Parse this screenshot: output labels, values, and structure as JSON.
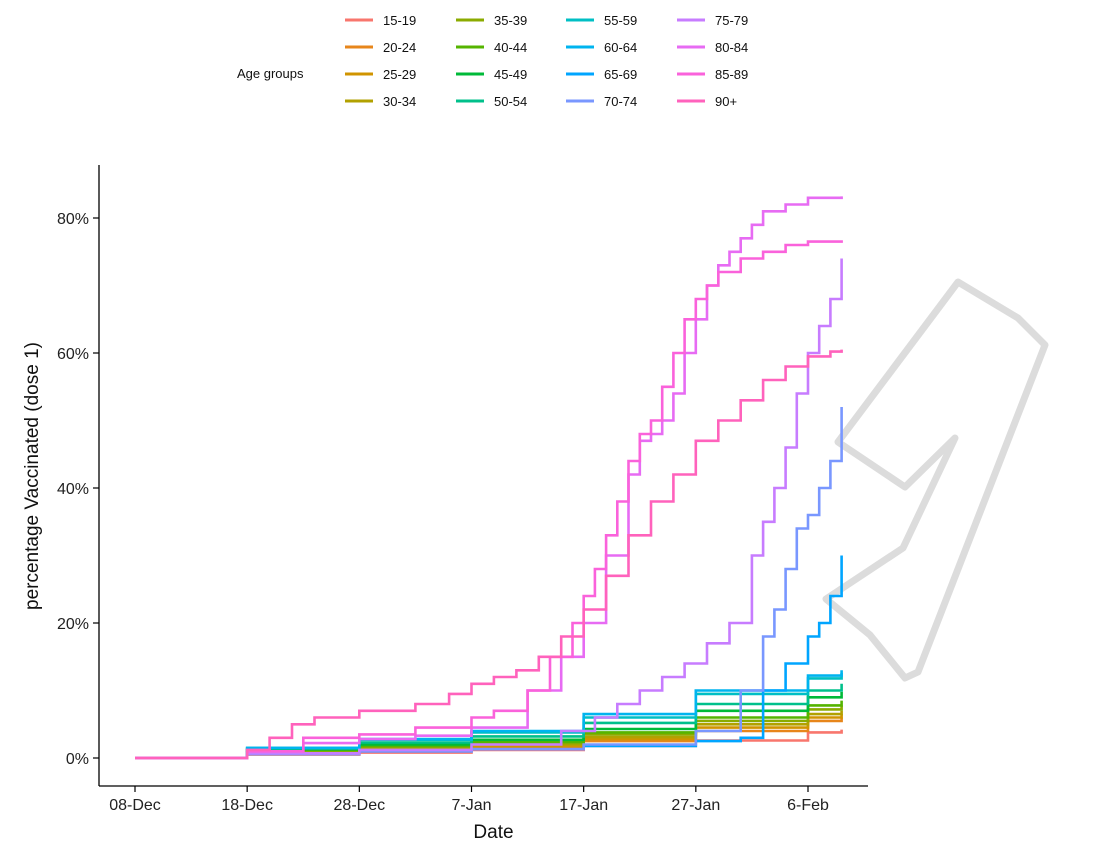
{
  "chart_data": {
    "type": "line",
    "step": true,
    "title": "",
    "xlabel": "Date",
    "ylabel": "percentage Vaccinated (dose 1)",
    "x_ticks": [
      "08-Dec",
      "18-Dec",
      "28-Dec",
      "7-Jan",
      "17-Jan",
      "27-Jan",
      "6-Feb"
    ],
    "x_tick_days": [
      0,
      10,
      20,
      30,
      40,
      50,
      60
    ],
    "x_range_days": [
      0,
      63
    ],
    "y_ticks": [
      "0%",
      "20%",
      "40%",
      "60%",
      "80%"
    ],
    "y_tick_values": [
      0,
      20,
      40,
      60,
      80
    ],
    "ylim": [
      -4,
      88
    ],
    "grid": false,
    "legend": {
      "title": "Age groups",
      "position": "top"
    },
    "series": [
      {
        "name": "15-19",
        "color": "#F8766D",
        "x": [
          0,
          10,
          20,
          30,
          40,
          50,
          60,
          63
        ],
        "y": [
          0,
          0.5,
          0.8,
          1.2,
          1.8,
          2.6,
          3.8,
          4.2
        ]
      },
      {
        "name": "20-24",
        "color": "#E7861B",
        "x": [
          0,
          10,
          20,
          30,
          40,
          50,
          60,
          63
        ],
        "y": [
          0,
          0.8,
          1.2,
          1.6,
          2.5,
          4,
          5.5,
          6
        ]
      },
      {
        "name": "25-29",
        "color": "#D09400",
        "x": [
          0,
          10,
          20,
          30,
          40,
          50,
          60,
          63
        ],
        "y": [
          0,
          0.9,
          1.4,
          1.8,
          2.8,
          4.5,
          6,
          6.5
        ]
      },
      {
        "name": "30-34",
        "color": "#B2A100",
        "x": [
          0,
          10,
          20,
          30,
          40,
          50,
          60,
          63
        ],
        "y": [
          0,
          1,
          1.5,
          2,
          3.1,
          5,
          6.5,
          7
        ]
      },
      {
        "name": "35-39",
        "color": "#8BAB00",
        "x": [
          0,
          10,
          20,
          30,
          40,
          50,
          60,
          63
        ],
        "y": [
          0,
          1.1,
          1.7,
          2.2,
          3.5,
          5.5,
          7.2,
          7.8
        ]
      },
      {
        "name": "40-44",
        "color": "#55B400",
        "x": [
          0,
          10,
          20,
          30,
          40,
          50,
          60,
          63
        ],
        "y": [
          0,
          1.2,
          1.8,
          2.4,
          3.8,
          6,
          7.8,
          8.5
        ]
      },
      {
        "name": "45-49",
        "color": "#00BA38",
        "x": [
          0,
          10,
          20,
          30,
          40,
          50,
          60,
          63
        ],
        "y": [
          0,
          1.3,
          2,
          2.7,
          4.3,
          7,
          9,
          9.8
        ]
      },
      {
        "name": "50-54",
        "color": "#00C08B",
        "x": [
          0,
          10,
          20,
          30,
          40,
          50,
          60,
          63
        ],
        "y": [
          0,
          1.4,
          2.3,
          3.2,
          5.2,
          8,
          10,
          11
        ]
      },
      {
        "name": "55-59",
        "color": "#00BFC4",
        "x": [
          0,
          10,
          20,
          30,
          40,
          50,
          60,
          63
        ],
        "y": [
          0,
          1.5,
          2.7,
          3.8,
          6,
          9.5,
          11.8,
          12.6
        ]
      },
      {
        "name": "60-64",
        "color": "#00B4EF",
        "x": [
          0,
          10,
          20,
          30,
          40,
          50,
          60,
          63
        ],
        "y": [
          0,
          1.5,
          2.8,
          4,
          6.5,
          10,
          12.2,
          13
        ]
      },
      {
        "name": "65-69",
        "color": "#00A5FF",
        "x": [
          0,
          10,
          20,
          30,
          40,
          50,
          54,
          56,
          58,
          60,
          61,
          62,
          63
        ],
        "y": [
          0,
          0.6,
          1,
          1.3,
          1.8,
          2.5,
          3,
          10,
          14,
          18,
          20,
          24,
          30
        ]
      },
      {
        "name": "70-74",
        "color": "#7997FF",
        "x": [
          0,
          10,
          20,
          30,
          40,
          50,
          54,
          56,
          57,
          58,
          59,
          60,
          61,
          62,
          63
        ],
        "y": [
          0,
          0.6,
          1,
          1.3,
          2,
          4,
          10,
          18,
          22,
          28,
          34,
          36,
          40,
          44,
          52
        ]
      },
      {
        "name": "75-79",
        "color": "#C77CFF",
        "x": [
          0,
          10,
          20,
          30,
          38,
          41,
          43,
          45,
          47,
          49,
          51,
          53,
          55,
          56,
          57,
          58,
          59,
          60,
          61,
          62,
          63
        ],
        "y": [
          0,
          0.7,
          1.2,
          2,
          4,
          6,
          8,
          10,
          12,
          14,
          17,
          20,
          30,
          35,
          40,
          46,
          54,
          60,
          64,
          68,
          74
        ]
      },
      {
        "name": "80-84",
        "color": "#E76BF3",
        "x": [
          0,
          10,
          15,
          20,
          25,
          30,
          35,
          38,
          40,
          42,
          44,
          45,
          46,
          47,
          48,
          49,
          50,
          51,
          52,
          53,
          54,
          55,
          56,
          58,
          60,
          63
        ],
        "y": [
          0,
          1,
          2.2,
          2.8,
          3.3,
          4.5,
          10,
          15,
          20,
          30,
          42,
          47,
          48,
          50,
          54,
          60,
          65,
          70,
          73,
          75,
          77,
          79,
          81,
          82,
          83,
          83.2
        ]
      },
      {
        "name": "85-89",
        "color": "#FA62DB",
        "x": [
          0,
          10,
          15,
          20,
          25,
          30,
          32,
          35,
          37,
          39,
          40,
          41,
          42,
          43,
          44,
          45,
          46,
          47,
          48,
          49,
          50,
          51,
          52,
          54,
          56,
          58,
          60,
          63
        ],
        "y": [
          0,
          1,
          3,
          3.5,
          4.5,
          6,
          7,
          10,
          15,
          20,
          24,
          28,
          33,
          38,
          44,
          48,
          50,
          55,
          60,
          65,
          68,
          70,
          72,
          74,
          75,
          76,
          76.5,
          76.7
        ]
      },
      {
        "name": "90+",
        "color": "#FF62BC",
        "x": [
          0,
          10,
          12,
          14,
          16,
          20,
          25,
          28,
          30,
          32,
          34,
          36,
          38,
          40,
          42,
          44,
          46,
          48,
          50,
          52,
          54,
          56,
          58,
          60,
          62,
          63
        ],
        "y": [
          0,
          1.2,
          3,
          5,
          6,
          7,
          8,
          9.5,
          11,
          12,
          13,
          15,
          18,
          22,
          27,
          33,
          38,
          42,
          47,
          50,
          53,
          56,
          58,
          59.5,
          60.2,
          60.5
        ]
      }
    ]
  },
  "watermark": {
    "color": "#dcdcdc"
  }
}
